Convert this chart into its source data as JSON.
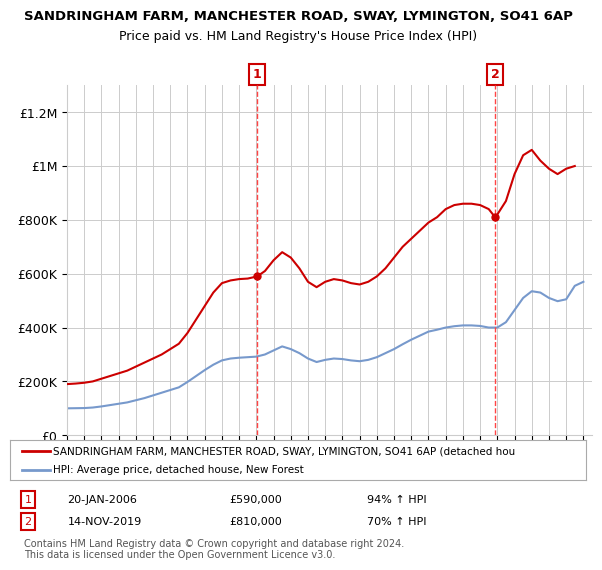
{
  "title": "SANDRINGHAM FARM, MANCHESTER ROAD, SWAY, LYMINGTON, SO41 6AP",
  "subtitle": "Price paid vs. HM Land Registry's House Price Index (HPI)",
  "ylim": [
    0,
    1300000
  ],
  "xlim": [
    1995,
    2025.5
  ],
  "yticks": [
    0,
    200000,
    400000,
    600000,
    800000,
    1000000,
    1200000
  ],
  "ytick_labels": [
    "£0",
    "£200K",
    "£400K",
    "£600K",
    "£800K",
    "£1M",
    "£1.2M"
  ],
  "sale1_x": 2006.05,
  "sale1_y": 590000,
  "sale1_label": "20-JAN-2006",
  "sale1_price": "£590,000",
  "sale1_hpi": "94% ↑ HPI",
  "sale2_x": 2019.87,
  "sale2_y": 810000,
  "sale2_label": "14-NOV-2019",
  "sale2_price": "£810,000",
  "sale2_hpi": "70% ↑ HPI",
  "red_line_color": "#cc0000",
  "blue_line_color": "#7799cc",
  "vline_color": "#ff4444",
  "bg_color": "#ffffff",
  "grid_color": "#cccccc",
  "legend_label_red": "SANDRINGHAM FARM, MANCHESTER ROAD, SWAY, LYMINGTON, SO41 6AP (detached hou",
  "legend_label_blue": "HPI: Average price, detached house, New Forest",
  "footer": "Contains HM Land Registry data © Crown copyright and database right 2024.\nThis data is licensed under the Open Government Licence v3.0.",
  "hpi_red_years": [
    1995,
    1995.5,
    1996,
    1996.5,
    1997,
    1997.5,
    1998,
    1998.5,
    1999,
    1999.5,
    2000,
    2000.5,
    2001,
    2001.5,
    2002,
    2002.5,
    2003,
    2003.5,
    2004,
    2004.5,
    2005,
    2005.5,
    2006.05,
    2006.5,
    2007,
    2007.5,
    2008,
    2008.5,
    2009,
    2009.5,
    2010,
    2010.5,
    2011,
    2011.5,
    2012,
    2012.5,
    2013,
    2013.5,
    2014,
    2014.5,
    2015,
    2015.5,
    2016,
    2016.5,
    2017,
    2017.5,
    2018,
    2018.5,
    2019,
    2019.5,
    2019.87,
    2020,
    2020.5,
    2021,
    2021.5,
    2022,
    2022.5,
    2023,
    2023.5,
    2024,
    2024.5
  ],
  "hpi_red_values": [
    190000,
    192000,
    195000,
    200000,
    210000,
    220000,
    230000,
    240000,
    255000,
    270000,
    285000,
    300000,
    320000,
    340000,
    380000,
    430000,
    480000,
    530000,
    565000,
    575000,
    580000,
    582000,
    590000,
    610000,
    650000,
    680000,
    660000,
    620000,
    570000,
    550000,
    570000,
    580000,
    575000,
    565000,
    560000,
    570000,
    590000,
    620000,
    660000,
    700000,
    730000,
    760000,
    790000,
    810000,
    840000,
    855000,
    860000,
    860000,
    855000,
    840000,
    810000,
    820000,
    870000,
    970000,
    1040000,
    1060000,
    1020000,
    990000,
    970000,
    990000,
    1000000
  ],
  "hpi_blue_years": [
    1995,
    1995.5,
    1996,
    1996.5,
    1997,
    1997.5,
    1998,
    1998.5,
    1999,
    1999.5,
    2000,
    2000.5,
    2001,
    2001.5,
    2002,
    2002.5,
    2003,
    2003.5,
    2004,
    2004.5,
    2005,
    2005.5,
    2006,
    2006.5,
    2007,
    2007.5,
    2008,
    2008.5,
    2009,
    2009.5,
    2010,
    2010.5,
    2011,
    2011.5,
    2012,
    2012.5,
    2013,
    2013.5,
    2014,
    2014.5,
    2015,
    2015.5,
    2016,
    2016.5,
    2017,
    2017.5,
    2018,
    2018.5,
    2019,
    2019.5,
    2020,
    2020.5,
    2021,
    2021.5,
    2022,
    2022.5,
    2023,
    2023.5,
    2024,
    2024.5,
    2025
  ],
  "hpi_blue_values": [
    100000,
    100500,
    101000,
    103000,
    107000,
    112000,
    117000,
    122000,
    130000,
    138000,
    148000,
    158000,
    168000,
    178000,
    198000,
    220000,
    242000,
    262000,
    278000,
    285000,
    288000,
    290000,
    292000,
    300000,
    315000,
    330000,
    320000,
    305000,
    285000,
    272000,
    280000,
    285000,
    283000,
    278000,
    275000,
    280000,
    290000,
    305000,
    320000,
    338000,
    355000,
    370000,
    385000,
    392000,
    400000,
    405000,
    408000,
    408000,
    406000,
    400000,
    400000,
    420000,
    465000,
    510000,
    535000,
    530000,
    510000,
    498000,
    505000,
    555000,
    570000
  ]
}
